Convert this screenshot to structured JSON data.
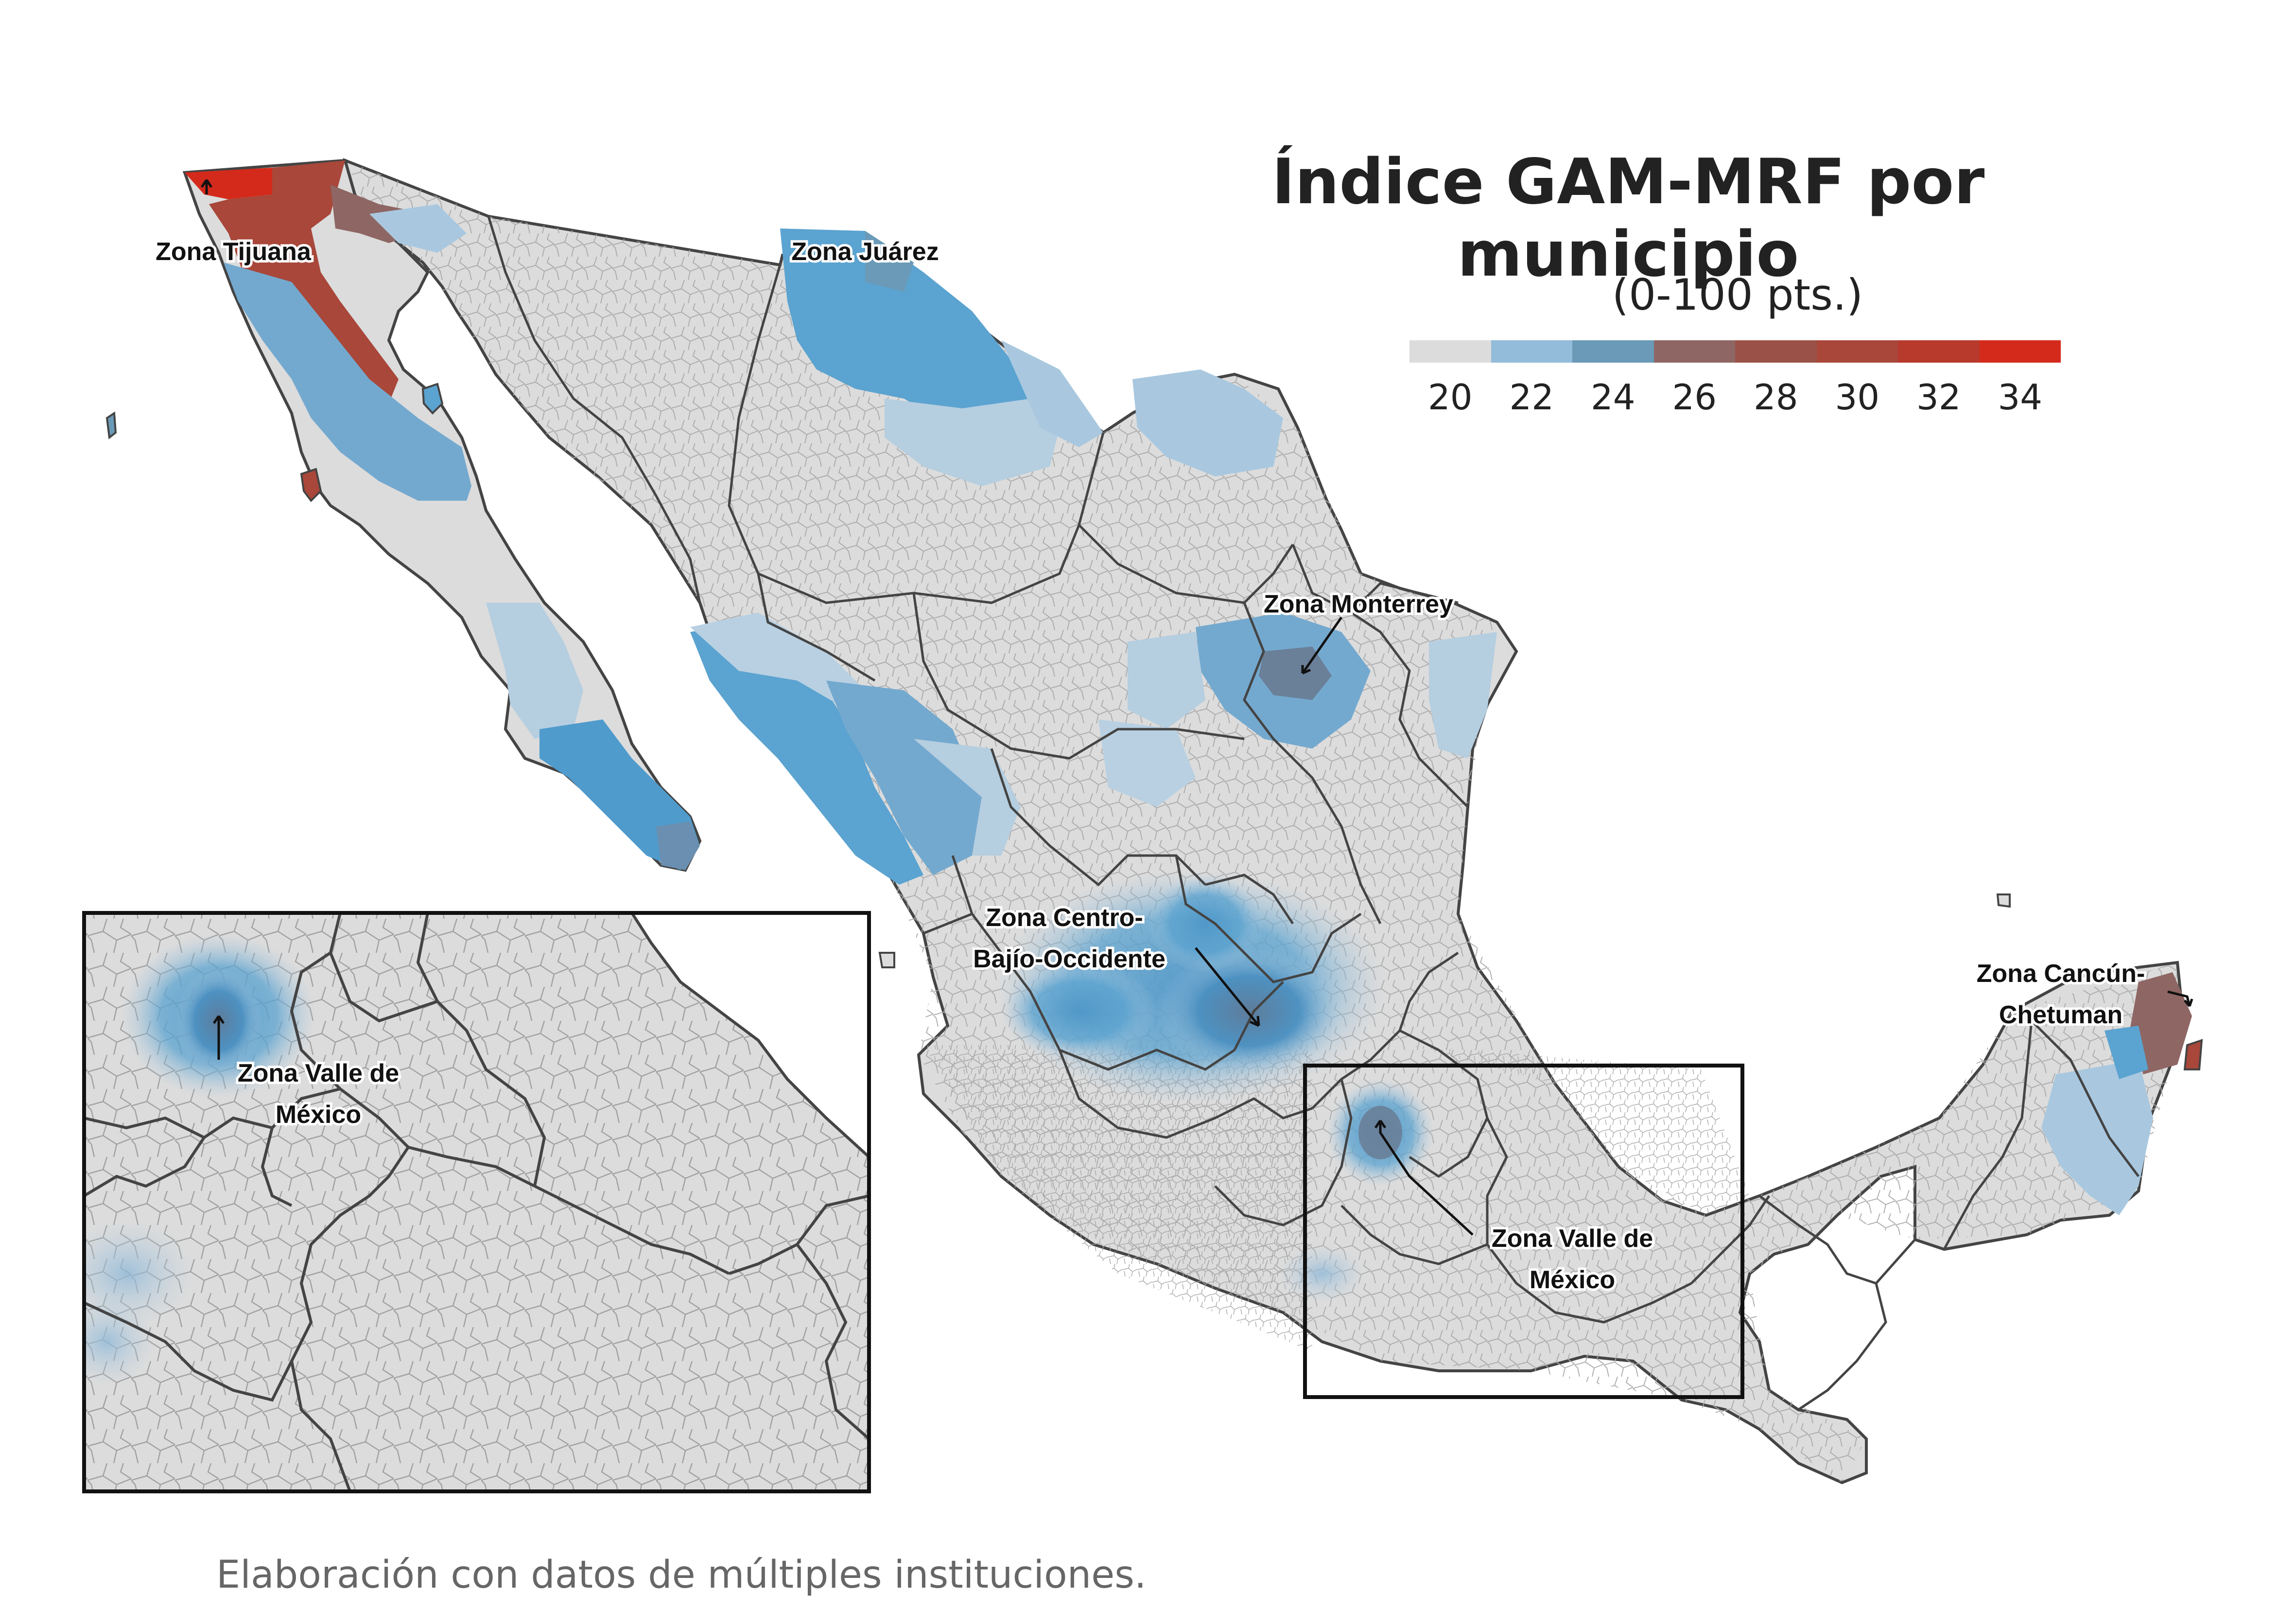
{
  "title": "Índice GAM-MRF por municipio",
  "subtitle": "(0-100 pts.)",
  "legend": {
    "ticks": [
      "20",
      "22",
      "24",
      "26",
      "28",
      "30",
      "32",
      "34"
    ],
    "colors": [
      "#dcdcdc",
      "#92bcd9",
      "#6a9ab7",
      "#8e6663",
      "#9a5248",
      "#a8473a",
      "#b73a2c",
      "#d42a1b"
    ]
  },
  "labels": {
    "tijuana": "Zona Tijuana",
    "juarez": "Zona Juárez",
    "monterrey": "Zona Monterrey",
    "centro_line1": "Zona Centro-",
    "centro_line2": "Bajío-Occidente",
    "valle_line1": "Zona Valle de",
    "valle_line2": "México",
    "cancun_line1": "Zona Cancún-",
    "cancun_line2": "Chetuman",
    "inset_valle_line1": "Zona Valle de",
    "inset_valle_line2": "México"
  },
  "source": "Elaboración con datos de múltiples instituciones.",
  "colors": {
    "land": "#dcdcdc",
    "border": "#444444",
    "grid": "#b0b0b0",
    "blue_light": "#a9c8df",
    "blue_mid": "#5ba3d0",
    "blue_dark": "#6a8fb0",
    "red_mid": "#a8473a",
    "red_bright": "#d42a1b",
    "brown": "#8e6663"
  }
}
